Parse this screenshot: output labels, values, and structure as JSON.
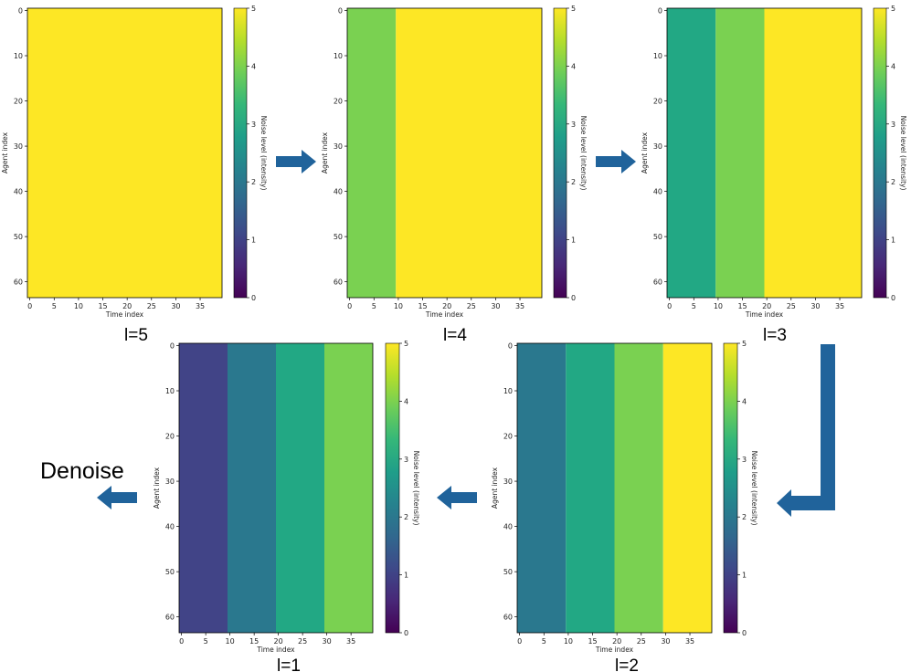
{
  "denoise_label": "Denoise",
  "colors": {
    "arrow": "#20639b",
    "frame": "#000000"
  },
  "chart_data": [
    {
      "type": "heatmap",
      "panel_label": "l=5",
      "xlabel": "Time index",
      "ylabel": "Agent index",
      "colorbar_label": "Noise level (intensity)",
      "x_ticks": [
        0,
        5,
        10,
        15,
        20,
        25,
        30,
        35
      ],
      "y_ticks": [
        0,
        10,
        20,
        30,
        40,
        50,
        60
      ],
      "colorbar_ticks": [
        0,
        1,
        2,
        3,
        4,
        5
      ],
      "rows": 64,
      "cols": 40,
      "vmin": 0,
      "vmax": 5,
      "colormap": "viridis",
      "column_blocks": [
        {
          "x_start": 0,
          "x_end": 40,
          "value": 5
        }
      ]
    },
    {
      "type": "heatmap",
      "panel_label": "l=4",
      "xlabel": "Time index",
      "ylabel": "Agent index",
      "colorbar_label": "Noise level (intensity)",
      "x_ticks": [
        0,
        5,
        10,
        15,
        20,
        25,
        30,
        35
      ],
      "y_ticks": [
        0,
        10,
        20,
        30,
        40,
        50,
        60
      ],
      "colorbar_ticks": [
        0,
        1,
        2,
        3,
        4,
        5
      ],
      "rows": 64,
      "cols": 40,
      "vmin": 0,
      "vmax": 5,
      "colormap": "viridis",
      "column_blocks": [
        {
          "x_start": 0,
          "x_end": 10,
          "value": 4
        },
        {
          "x_start": 10,
          "x_end": 40,
          "value": 5
        }
      ]
    },
    {
      "type": "heatmap",
      "panel_label": "l=3",
      "xlabel": "Time index",
      "ylabel": "Agent index",
      "colorbar_label": "Noise level (intensity)",
      "x_ticks": [
        0,
        5,
        10,
        15,
        20,
        25,
        30,
        35
      ],
      "y_ticks": [
        0,
        10,
        20,
        30,
        40,
        50,
        60
      ],
      "colorbar_ticks": [
        0,
        1,
        2,
        3,
        4,
        5
      ],
      "rows": 64,
      "cols": 40,
      "vmin": 0,
      "vmax": 5,
      "colormap": "viridis",
      "column_blocks": [
        {
          "x_start": 0,
          "x_end": 10,
          "value": 3
        },
        {
          "x_start": 10,
          "x_end": 20,
          "value": 4
        },
        {
          "x_start": 20,
          "x_end": 40,
          "value": 5
        }
      ]
    },
    {
      "type": "heatmap",
      "panel_label": "l=1",
      "xlabel": "Time index",
      "ylabel": "Agent index",
      "colorbar_label": "Noise level (intensity)",
      "x_ticks": [
        0,
        5,
        10,
        15,
        20,
        25,
        30,
        35
      ],
      "y_ticks": [
        0,
        10,
        20,
        30,
        40,
        50,
        60
      ],
      "colorbar_ticks": [
        0,
        1,
        2,
        3,
        4,
        5
      ],
      "rows": 64,
      "cols": 40,
      "vmin": 0,
      "vmax": 5,
      "colormap": "viridis",
      "column_blocks": [
        {
          "x_start": 0,
          "x_end": 10,
          "value": 1
        },
        {
          "x_start": 10,
          "x_end": 20,
          "value": 2
        },
        {
          "x_start": 20,
          "x_end": 30,
          "value": 3
        },
        {
          "x_start": 30,
          "x_end": 40,
          "value": 4
        }
      ]
    },
    {
      "type": "heatmap",
      "panel_label": "l=2",
      "xlabel": "Time index",
      "ylabel": "Agent index",
      "colorbar_label": "Noise level (intensity)",
      "x_ticks": [
        0,
        5,
        10,
        15,
        20,
        25,
        30,
        35
      ],
      "y_ticks": [
        0,
        10,
        20,
        30,
        40,
        50,
        60
      ],
      "colorbar_ticks": [
        0,
        1,
        2,
        3,
        4,
        5
      ],
      "rows": 64,
      "cols": 40,
      "vmin": 0,
      "vmax": 5,
      "colormap": "viridis",
      "column_blocks": [
        {
          "x_start": 0,
          "x_end": 10,
          "value": 2
        },
        {
          "x_start": 10,
          "x_end": 20,
          "value": 3
        },
        {
          "x_start": 20,
          "x_end": 30,
          "value": 4
        },
        {
          "x_start": 30,
          "x_end": 40,
          "value": 5
        }
      ]
    }
  ]
}
